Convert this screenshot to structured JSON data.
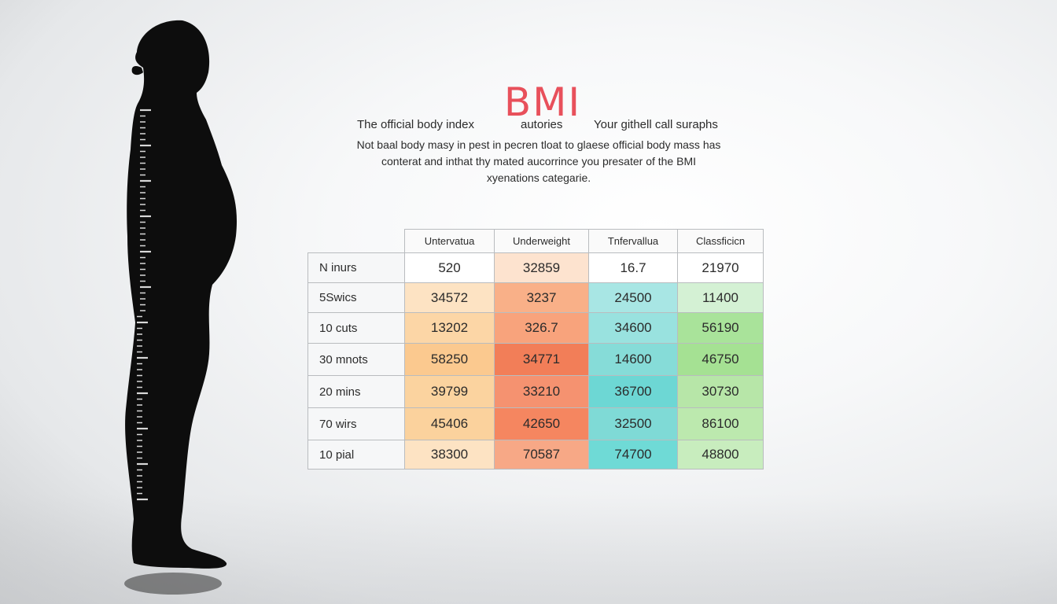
{
  "colors": {
    "title": "#e8505b",
    "silhouette": "#0d0d0d",
    "ruler_marks": "#d8d8d8"
  },
  "icons": [
    "person-silhouette",
    "height-ruler"
  ],
  "title": "BMI",
  "subheading": {
    "left": "The official body index",
    "middle": "autories",
    "right": "Your githell call suraphs"
  },
  "description": [
    "Not baal body masy in pest in pecren tloat to glaese official body mass has",
    "conterat and inthat thy mated aucorrince you presater of the BMI",
    "xyenations categarie."
  ],
  "table": {
    "headers": [
      "",
      "Untervatua",
      "Underweight",
      "Tnfervallua",
      "Classficicn"
    ],
    "rows": [
      {
        "label": "N inurs",
        "values": [
          "520",
          "32859",
          "16.7",
          "21970"
        ],
        "colors": [
          "#ffffff",
          "#fde3cf",
          "#ffffff",
          "#ffffff"
        ]
      },
      {
        "label": "5Swics",
        "values": [
          "34572",
          "3237",
          "24500",
          "11400"
        ],
        "colors": [
          "#fde3c3",
          "#f9b088",
          "#a8e6e4",
          "#d4f1d4"
        ]
      },
      {
        "label": "10 cuts",
        "values": [
          "13202",
          "326.7",
          "34600",
          "56190"
        ],
        "colors": [
          "#fcd6a6",
          "#f8a37c",
          "#99e2df",
          "#a9e39a"
        ]
      },
      {
        "label": "30 mnots",
        "values": [
          "58250",
          "34771",
          "14600",
          "46750"
        ],
        "colors": [
          "#fbc98f",
          "#f27e58",
          "#86dcd8",
          "#a5e193"
        ]
      },
      {
        "label": "20 mins",
        "values": [
          "39799",
          "33210",
          "36700",
          "30730"
        ],
        "colors": [
          "#fbd39f",
          "#f59270",
          "#6dd7d4",
          "#b7e6a8"
        ]
      },
      {
        "label": "70 wirs",
        "values": [
          "45406",
          "42650",
          "32500",
          "86100"
        ],
        "colors": [
          "#fbd29d",
          "#f58660",
          "#7fdad6",
          "#bce9ae"
        ]
      },
      {
        "label": "10 pial",
        "values": [
          "38300",
          "70587",
          "74700",
          "48800"
        ],
        "colors": [
          "#fde3c3",
          "#f7a886",
          "#6fdad6",
          "#c8edbe"
        ]
      }
    ]
  }
}
